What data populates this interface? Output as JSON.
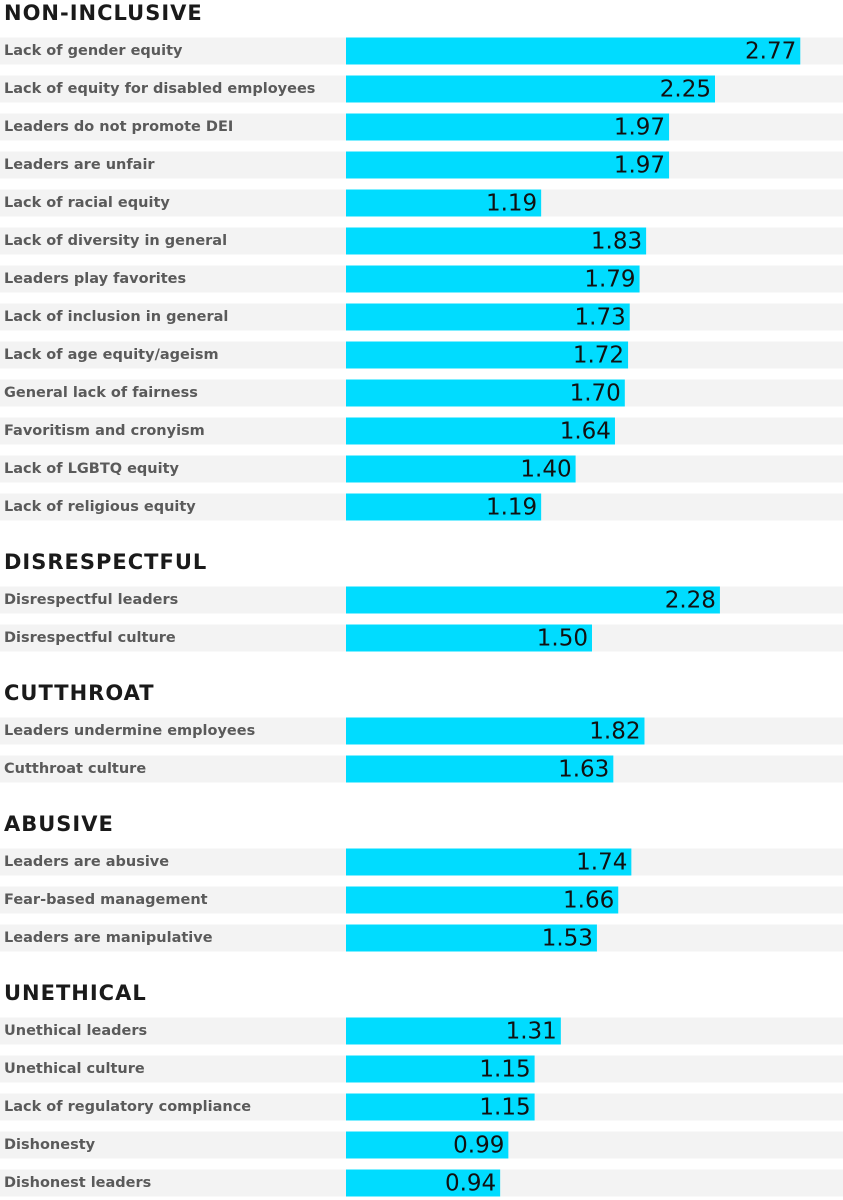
{
  "chart_data": {
    "type": "bar",
    "color": "#00dcff",
    "groups": [
      {
        "title": "NON-INCLUSIVE",
        "categories": [
          "Lack of gender equity",
          "Lack of equity for disabled employees",
          "Leaders do not promote DEI",
          "Leaders are unfair",
          "Lack of racial equity",
          "Lack of diversity in general",
          "Leaders play favorites",
          "Lack of inclusion in general",
          "Lack of age equity/ageism",
          "General lack of fairness",
          "Favoritism and cronyism",
          "Lack of LGBTQ equity",
          "Lack of religious equity"
        ],
        "values": [
          2.77,
          2.25,
          1.97,
          1.97,
          1.19,
          1.83,
          1.79,
          1.73,
          1.72,
          1.7,
          1.64,
          1.4,
          1.19
        ],
        "value_labels": [
          "2.77",
          "2.25",
          "1.97",
          "1.97",
          "1.19",
          "1.83",
          "1.79",
          "1.73",
          "1.72",
          "1.70",
          "1.64",
          "1.40",
          "1.19"
        ]
      },
      {
        "title": "DISRESPECTFUL",
        "categories": [
          "Disrespectful leaders",
          "Disrespectful culture"
        ],
        "values": [
          2.28,
          1.5
        ],
        "value_labels": [
          "2.28",
          "1.50"
        ]
      },
      {
        "title": "CUTTHROAT",
        "categories": [
          "Leaders undermine employees",
          "Cutthroat culture"
        ],
        "values": [
          1.82,
          1.63
        ],
        "value_labels": [
          "1.82",
          "1.63"
        ]
      },
      {
        "title": "ABUSIVE",
        "categories": [
          "Leaders are abusive",
          "Fear-based management",
          "Leaders are manipulative"
        ],
        "values": [
          1.74,
          1.66,
          1.53
        ],
        "value_labels": [
          "1.74",
          "1.66",
          "1.53"
        ]
      },
      {
        "title": "UNETHICAL",
        "categories": [
          "Unethical leaders",
          "Unethical culture",
          "Lack of regulatory compliance",
          "Dishonesty",
          "Dishonest leaders"
        ],
        "values": [
          1.31,
          1.15,
          1.15,
          0.99,
          0.94
        ],
        "value_labels": [
          "1.31",
          "1.15",
          "1.15",
          "0.99",
          "0.94"
        ]
      }
    ]
  }
}
